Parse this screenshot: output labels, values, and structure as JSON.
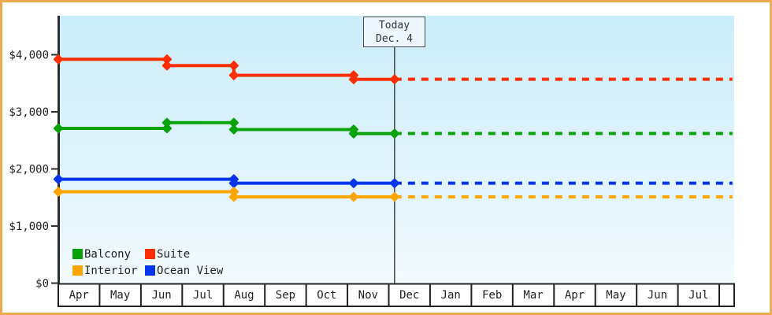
{
  "today_marker": {
    "line1": "Today",
    "line2": "Dec. 4"
  },
  "colors": {
    "frame_border": "#ECA94F",
    "plot_bg_top": "#CBEDFA",
    "plot_bg_mid": "#E9F6FC",
    "plot_bg_bottom": "#F4FBFE",
    "axis": "#2E2E2E",
    "band_bg": "#FFFFFF",
    "band_border": "#222222",
    "today_line": "#444444",
    "today_box_bg": "#EDF7FD",
    "today_box_border": "#4A4A4A",
    "text": "#222222"
  },
  "y_axis": {
    "tick_labels": [
      "$4,000",
      "$3,000",
      "$2,000",
      "$1,000",
      "$0"
    ],
    "tick_values": [
      4000,
      3000,
      2000,
      1000,
      0
    ]
  },
  "x_axis": {
    "month_labels": [
      "Apr",
      "May",
      "Jun",
      "Jul",
      "Aug",
      "Sep",
      "Oct",
      "Nov",
      "Dec",
      "Jan",
      "Feb",
      "Mar",
      "Apr",
      "May",
      "Jun",
      "Jul"
    ]
  },
  "legend": {
    "items": [
      {
        "label": "Balcony",
        "color": "#09A309"
      },
      {
        "label": "Suite",
        "color": "#FF2D00"
      },
      {
        "label": "Interior",
        "color": "#FFA500"
      },
      {
        "label": "Ocean View",
        "color": "#0534EE"
      }
    ]
  },
  "chart_data": {
    "type": "line",
    "x_unit": "month_index_from_first_Apr",
    "categories_x": [
      "Apr",
      "May",
      "Jun",
      "Jul",
      "Aug",
      "Sep",
      "Oct",
      "Nov",
      "Dec",
      "Jan",
      "Feb",
      "Mar",
      "Apr",
      "May",
      "Jun",
      "Jul"
    ],
    "ylim": [
      0,
      4680
    ],
    "y_ticks": [
      0,
      1000,
      2000,
      3000,
      4000
    ],
    "today_x": 8.14,
    "today_label": "Today Dec. 4",
    "x_end": 16.32,
    "grid": false,
    "legend_position": "bottom-left-inside",
    "series": [
      {
        "name": "Suite",
        "color": "#FF2D00",
        "forecast_value": 3570,
        "points": [
          {
            "x": 0,
            "y": 3920
          },
          {
            "x": 2.63,
            "y": 3920
          },
          {
            "x": 2.63,
            "y": 3810
          },
          {
            "x": 4.25,
            "y": 3810
          },
          {
            "x": 4.25,
            "y": 3640
          },
          {
            "x": 7.15,
            "y": 3640
          },
          {
            "x": 7.15,
            "y": 3570
          },
          {
            "x": 8.14,
            "y": 3570
          }
        ]
      },
      {
        "name": "Balcony",
        "color": "#09A309",
        "forecast_value": 2620,
        "points": [
          {
            "x": 0,
            "y": 2710
          },
          {
            "x": 2.63,
            "y": 2710
          },
          {
            "x": 2.63,
            "y": 2810
          },
          {
            "x": 4.25,
            "y": 2810
          },
          {
            "x": 4.25,
            "y": 2690
          },
          {
            "x": 7.15,
            "y": 2690
          },
          {
            "x": 7.15,
            "y": 2620
          },
          {
            "x": 8.14,
            "y": 2620
          }
        ]
      },
      {
        "name": "Ocean View",
        "color": "#0534EE",
        "forecast_value": 1750,
        "points": [
          {
            "x": 0,
            "y": 1820
          },
          {
            "x": 4.25,
            "y": 1820
          },
          {
            "x": 4.25,
            "y": 1750
          },
          {
            "x": 7.15,
            "y": 1750
          },
          {
            "x": 8.14,
            "y": 1750
          }
        ]
      },
      {
        "name": "Interior",
        "color": "#FFA500",
        "forecast_value": 1510,
        "points": [
          {
            "x": 0,
            "y": 1600
          },
          {
            "x": 4.25,
            "y": 1600
          },
          {
            "x": 4.25,
            "y": 1510
          },
          {
            "x": 7.15,
            "y": 1510
          },
          {
            "x": 8.14,
            "y": 1510
          }
        ]
      }
    ]
  }
}
